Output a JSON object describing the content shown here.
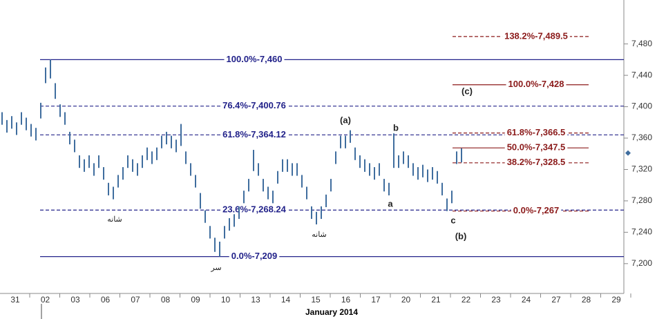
{
  "chart_data": {
    "type": "ohlc",
    "x_title": "January 2014",
    "categories": [
      "31",
      "02",
      "03",
      "06",
      "07",
      "08",
      "09",
      "10",
      "13",
      "14",
      "15",
      "16",
      "17",
      "20",
      "21",
      "22",
      "23",
      "24",
      "27",
      "28",
      "29"
    ],
    "ylim": [
      7162,
      7536
    ],
    "yticks": [
      {
        "value": 7200,
        "label": "7,200"
      },
      {
        "value": 7240,
        "label": "7,240"
      },
      {
        "value": 7280,
        "label": "7,280"
      },
      {
        "value": 7320,
        "label": "7,320"
      },
      {
        "value": 7360,
        "label": "7,360"
      },
      {
        "value": 7400,
        "label": "7,400"
      },
      {
        "value": 7440,
        "label": "7,440"
      },
      {
        "value": 7480,
        "label": "7,480"
      }
    ],
    "color": "#3f6d9e",
    "high": [
      7393,
      7383,
      7388,
      7380,
      7393,
      7386,
      7378,
      7373,
      7405,
      7450,
      7460,
      7430,
      7403,
      7393,
      7368,
      7358,
      7338,
      7333,
      7338,
      7328,
      7338,
      7323,
      7303,
      7298,
      7313,
      7323,
      7338,
      7333,
      7328,
      7338,
      7348,
      7343,
      7348,
      7363,
      7368,
      7363,
      7358,
      7378,
      7343,
      7328,
      7313,
      7290,
      7268,
      7248,
      7233,
      7228,
      7248,
      7258,
      7263,
      7273,
      7293,
      7308,
      7345,
      7328,
      7308,
      7298,
      7293,
      7318,
      7333,
      7333,
      7328,
      7328,
      7313,
      7298,
      7273,
      7266,
      7273,
      7288,
      7308,
      7343,
      7363,
      7363,
      7370,
      7348,
      7338,
      7333,
      7328,
      7323,
      7328,
      7308,
      7303,
      7366,
      7338,
      7343,
      7338,
      7328,
      7323,
      7326,
      7320,
      7323,
      7318,
      7303,
      7283,
      7293,
      7343,
      7347
    ],
    "low": [
      7377,
      7367,
      7372,
      7364,
      7377,
      7370,
      7362,
      7357,
      7385,
      7430,
      7436,
      7410,
      7387,
      7377,
      7352,
      7342,
      7322,
      7317,
      7322,
      7312,
      7322,
      7307,
      7287,
      7282,
      7297,
      7307,
      7322,
      7317,
      7312,
      7322,
      7332,
      7327,
      7332,
      7347,
      7352,
      7347,
      7342,
      7350,
      7327,
      7312,
      7297,
      7270,
      7252,
      7232,
      7215,
      7209,
      7232,
      7242,
      7247,
      7257,
      7277,
      7292,
      7318,
      7312,
      7292,
      7282,
      7277,
      7302,
      7317,
      7317,
      7312,
      7312,
      7297,
      7282,
      7257,
      7250,
      7257,
      7272,
      7292,
      7327,
      7347,
      7347,
      7354,
      7332,
      7322,
      7317,
      7312,
      7307,
      7312,
      7292,
      7287,
      7322,
      7322,
      7327,
      7322,
      7312,
      7307,
      7310,
      7304,
      7307,
      7302,
      7287,
      7267,
      7277,
      7327,
      7329
    ],
    "last_price": 7341,
    "blue_levels": [
      {
        "value": 7460,
        "label": "100.0%-7,460"
      },
      {
        "value": 7400.76,
        "label": "76.4%-7,400.76"
      },
      {
        "value": 7364.12,
        "label": "61.8%-7,364.12"
      },
      {
        "value": 7268.24,
        "label": "23.6%-7,268.24"
      },
      {
        "value": 7209,
        "label": "0.0%-7,209"
      }
    ],
    "red_levels": [
      {
        "value": 7489.5,
        "label": "138.2%-7,489.5"
      },
      {
        "value": 7428,
        "label": "100.0%-7,428"
      },
      {
        "value": 7366.5,
        "label": "61.8%-7,366.5"
      },
      {
        "value": 7347.5,
        "label": "50.0%-7,347.5"
      },
      {
        "value": 7328.5,
        "label": "38.2%-7,328.5"
      },
      {
        "value": 7267,
        "label": "0.0%-7,267"
      }
    ],
    "annotations": [
      "(a)",
      "b",
      "a",
      "c",
      "(b)",
      "(c)",
      "شانه",
      "شانه",
      "سر"
    ]
  }
}
